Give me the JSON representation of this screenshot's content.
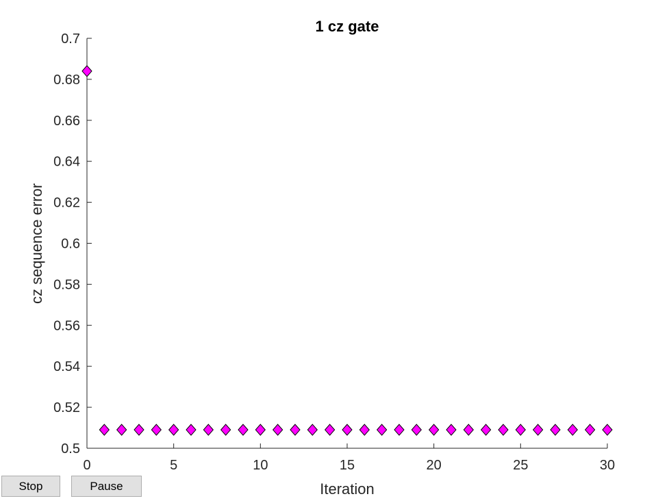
{
  "chart_data": {
    "type": "scatter",
    "title": "1 cz gate",
    "xlabel": "Iteration",
    "ylabel": "cz sequence error",
    "xlim": [
      0,
      30
    ],
    "ylim": [
      0.5,
      0.7
    ],
    "xticks": [
      0,
      5,
      10,
      15,
      20,
      25,
      30
    ],
    "xtick_labels": [
      "0",
      "5",
      "10",
      "15",
      "20",
      "25",
      "30"
    ],
    "yticks": [
      0.5,
      0.52,
      0.54,
      0.56,
      0.58,
      0.6,
      0.62,
      0.64,
      0.66,
      0.68,
      0.7
    ],
    "ytick_labels": [
      "0.5",
      "0.52",
      "0.54",
      "0.56",
      "0.58",
      "0.6",
      "0.62",
      "0.64",
      "0.66",
      "0.68",
      "0.7"
    ],
    "grid": false,
    "marker": "diamond",
    "marker_color": "#ff00ff",
    "marker_edge_color": "#000000",
    "x": [
      0,
      1,
      2,
      3,
      4,
      5,
      6,
      7,
      8,
      9,
      10,
      11,
      12,
      13,
      14,
      15,
      16,
      17,
      18,
      19,
      20,
      21,
      22,
      23,
      24,
      25,
      26,
      27,
      28,
      29,
      30
    ],
    "y": [
      0.684,
      0.509,
      0.509,
      0.509,
      0.509,
      0.509,
      0.509,
      0.509,
      0.509,
      0.509,
      0.509,
      0.509,
      0.509,
      0.509,
      0.509,
      0.509,
      0.509,
      0.509,
      0.509,
      0.509,
      0.509,
      0.509,
      0.509,
      0.509,
      0.509,
      0.509,
      0.509,
      0.509,
      0.509,
      0.509,
      0.509
    ]
  },
  "controls": {
    "stop_label": "Stop",
    "pause_label": "Pause"
  }
}
